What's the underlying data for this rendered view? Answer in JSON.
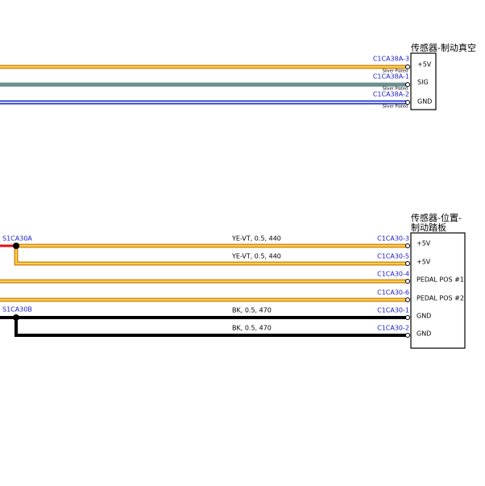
{
  "connectors": [
    {
      "title": "传感器-制动真空",
      "pins": [
        {
          "label": "+5V",
          "terminal": "C1CA38A-3",
          "plating": "Silver Plated"
        },
        {
          "label": "SIG",
          "terminal": "C1CA38A-1",
          "plating": "Silver Plated"
        },
        {
          "label": "GND",
          "terminal": "C1CA38A-2",
          "plating": "Silver Plated"
        }
      ]
    },
    {
      "title_lines": [
        "传感器-位置-",
        "制动踏板"
      ],
      "pins": [
        {
          "label": "+5V",
          "terminal": "C1CA30-3",
          "wire": "YE-VT, 0.5, 440"
        },
        {
          "label": "+5V",
          "terminal": "C1CA30-5",
          "wire": "YE-VT, 0.5, 440"
        },
        {
          "label": "PEDAL POS #1",
          "terminal": "C1CA30-4"
        },
        {
          "label": "PEDAL POS #2",
          "terminal": "C1CA30-6"
        },
        {
          "label": "GND",
          "terminal": "C1CA30-1",
          "wire": "BK, 0.5, 470"
        },
        {
          "label": "GND",
          "terminal": "C1CA30-2",
          "wire": "BK, 0.5, 470"
        }
      ]
    }
  ],
  "splices": [
    "S1CA30A",
    "S1CA30B"
  ]
}
